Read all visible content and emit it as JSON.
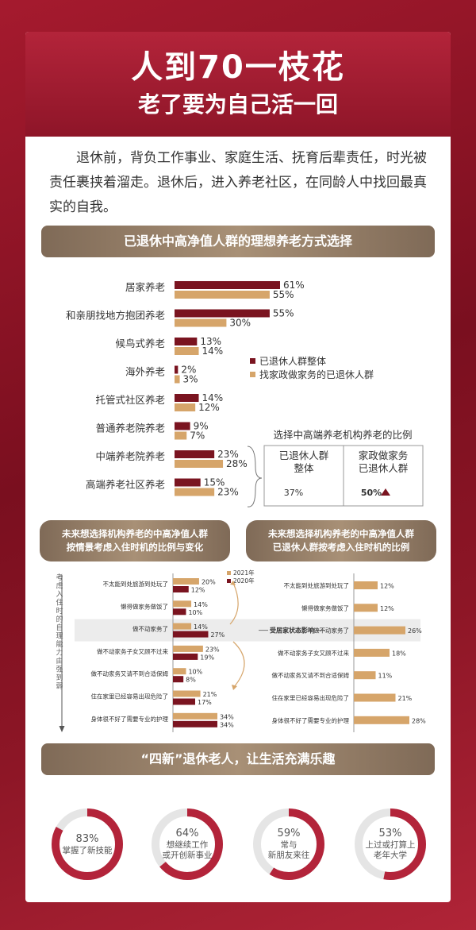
{
  "hero": {
    "title": "人到70一枝花",
    "subtitle": "老了要为自己活一回"
  },
  "intro": "退休前，背负工作事业、家庭生活、抚育后辈责任，时光被责任裹挟着溜走。退休后，进入养老社区，在同龄人中找回最真实的自我。",
  "section1_title": "已退休中高净值人群的理想养老方式选择",
  "section2_title": "未来想选择机构养老的中高净值人群按情景考虑入住时机的比例与变化",
  "section2_title_l1": "未来想选择机构养老的中高净值人群",
  "section2_title_l2": "按情景考虑入住时机的比例与变化",
  "section3_title_l1": "未来想选择机构养老的中高净值人群",
  "section3_title_l2": "已退休人群按考虑入住时机的比例",
  "section4_title": "“四新”退休老人，让生活充满乐趣",
  "inset": {
    "title": "选择中高端养老机构养老的比例",
    "col1_l1": "已退休人群",
    "col1_l2": "整体",
    "col1_val": "37%",
    "col2_l1": "家政做家务",
    "col2_l2": "已退休人群",
    "col2_val": "50%"
  },
  "yaxis_note": "考虑入住时的自理能力由强到弱",
  "influence_label": "受居家状态影响",
  "colors": {
    "dark": "#7a1420",
    "tan": "#d6a56a",
    "red": "#b3243a",
    "ring_bg": "#e5e5e5"
  },
  "chart_data": [
    {
      "type": "bar",
      "orientation": "horizontal",
      "categories": [
        "居家养老",
        "和亲朋找地方抱团养老",
        "候鸟式养老",
        "海外养老",
        "托管式社区养老",
        "普通养老院养老",
        "中端养老院养老",
        "高端养老社区养老"
      ],
      "series": [
        {
          "name": "已退休人群整体",
          "values": [
            61,
            55,
            13,
            2,
            14,
            9,
            23,
            15
          ]
        },
        {
          "name": "找家政做家务的已退休人群",
          "values": [
            55,
            30,
            14,
            3,
            12,
            7,
            28,
            23
          ]
        }
      ],
      "unit": "%",
      "legend": "right"
    },
    {
      "type": "bar",
      "orientation": "horizontal",
      "categories": [
        "不太能到处旅游到处玩了",
        "懒得做家务做饭了",
        "做不动家务了",
        "做不动家务子女又顾不过来",
        "做不动家务又请不到合适保姆",
        "住在家里已经容易出现危险了",
        "身体很不好了需要专业的护理"
      ],
      "series": [
        {
          "name": "2021年",
          "values": [
            20,
            14,
            14,
            23,
            10,
            21,
            34
          ]
        },
        {
          "name": "2020年",
          "values": [
            12,
            10,
            27,
            19,
            8,
            17,
            34
          ]
        }
      ],
      "unit": "%",
      "legend": "top-right"
    },
    {
      "type": "bar",
      "orientation": "horizontal",
      "categories": [
        "不太能到处旅游到处玩了",
        "懒得做家务做饭了",
        "做不动家务了",
        "做不动家务子女又顾不过来",
        "做不动家务又请不到合适保姆",
        "住在家里已经容易出现危险了",
        "身体很不好了需要专业的护理"
      ],
      "values": [
        12,
        12,
        26,
        18,
        11,
        21,
        28
      ],
      "unit": "%"
    },
    {
      "type": "pie",
      "style": "ring",
      "values": [
        83,
        64,
        59,
        53
      ],
      "labels": [
        [
          "掌握了新技能"
        ],
        [
          "想继续工作",
          "或开创新事业"
        ],
        [
          "常与",
          "新朋友来往"
        ],
        [
          "上过或打算上",
          "老年大学"
        ]
      ],
      "value_labels": [
        "83%",
        "64%",
        "59%",
        "53%"
      ]
    }
  ]
}
